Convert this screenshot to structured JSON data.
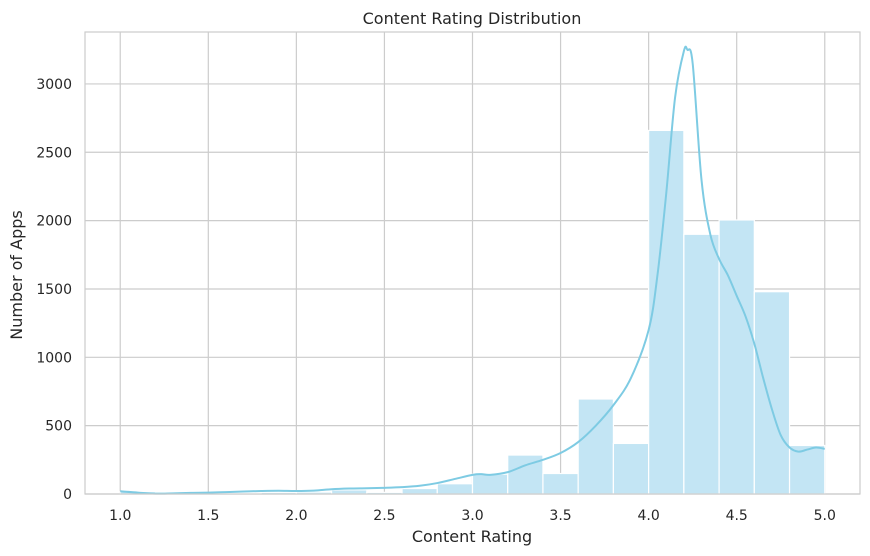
{
  "colors": {
    "bar_fill": "#c3e5f4",
    "bar_stroke": "#ffffff",
    "kde_line": "#7ecbe3",
    "grid": "#cccccc",
    "spine": "#cccccc",
    "text": "#262626",
    "background": "#ffffff"
  },
  "chart_data": {
    "type": "bar",
    "title": "Content Rating Distribution",
    "xlabel": "Content Rating",
    "ylabel": "Number of Apps",
    "xlim": [
      0.8,
      5.2
    ],
    "ylim": [
      0,
      3380
    ],
    "grid": true,
    "xticks": [
      1.0,
      1.5,
      2.0,
      2.5,
      3.0,
      3.5,
      4.0,
      4.5,
      5.0
    ],
    "xtick_labels": [
      "1.0",
      "1.5",
      "2.0",
      "2.5",
      "3.0",
      "3.5",
      "4.0",
      "4.5",
      "5.0"
    ],
    "yticks": [
      0,
      500,
      1000,
      1500,
      2000,
      2500,
      3000
    ],
    "ytick_labels": [
      "0",
      "500",
      "1000",
      "1500",
      "2000",
      "2500",
      "3000"
    ],
    "bins": [
      {
        "x0": 1.0,
        "x1": 1.2,
        "count": 17
      },
      {
        "x0": 1.2,
        "x1": 1.4,
        "count": 0
      },
      {
        "x0": 1.4,
        "x1": 1.6,
        "count": 3
      },
      {
        "x0": 1.6,
        "x1": 1.8,
        "count": 8
      },
      {
        "x0": 1.8,
        "x1": 2.0,
        "count": 12
      },
      {
        "x0": 2.0,
        "x1": 2.2,
        "count": 14
      },
      {
        "x0": 2.2,
        "x1": 2.4,
        "count": 30
      },
      {
        "x0": 2.4,
        "x1": 2.6,
        "count": 12
      },
      {
        "x0": 2.6,
        "x1": 2.8,
        "count": 40
      },
      {
        "x0": 2.8,
        "x1": 3.0,
        "count": 75
      },
      {
        "x0": 3.0,
        "x1": 3.2,
        "count": 145
      },
      {
        "x0": 3.2,
        "x1": 3.4,
        "count": 285
      },
      {
        "x0": 3.4,
        "x1": 3.6,
        "count": 150
      },
      {
        "x0": 3.6,
        "x1": 3.8,
        "count": 695
      },
      {
        "x0": 3.8,
        "x1": 4.0,
        "count": 370
      },
      {
        "x0": 4.0,
        "x1": 4.2,
        "count": 2660
      },
      {
        "x0": 4.2,
        "x1": 4.4,
        "count": 1900
      },
      {
        "x0": 4.4,
        "x1": 4.6,
        "count": 2005
      },
      {
        "x0": 4.6,
        "x1": 4.8,
        "count": 1480
      },
      {
        "x0": 4.8,
        "x1": 5.0,
        "count": 355
      }
    ],
    "kde": {
      "x": [
        1.0,
        1.1,
        1.2,
        1.3,
        1.4,
        1.5,
        1.6,
        1.7,
        1.8,
        1.9,
        2.0,
        2.1,
        2.2,
        2.3,
        2.4,
        2.5,
        2.6,
        2.7,
        2.8,
        2.9,
        3.0,
        3.05,
        3.1,
        3.2,
        3.3,
        3.4,
        3.5,
        3.6,
        3.7,
        3.8,
        3.9,
        4.0,
        4.05,
        4.1,
        4.15,
        4.2,
        4.22,
        4.25,
        4.3,
        4.35,
        4.4,
        4.45,
        4.5,
        4.55,
        4.6,
        4.65,
        4.7,
        4.75,
        4.8,
        4.85,
        4.9,
        4.95,
        5.0
      ],
      "y": [
        20,
        10,
        3,
        5,
        8,
        10,
        14,
        18,
        22,
        24,
        22,
        25,
        35,
        40,
        42,
        45,
        50,
        60,
        80,
        110,
        140,
        145,
        140,
        160,
        210,
        250,
        300,
        380,
        500,
        650,
        850,
        1200,
        1600,
        2200,
        2900,
        3240,
        3250,
        3150,
        2300,
        1900,
        1720,
        1600,
        1450,
        1300,
        1100,
        850,
        620,
        430,
        340,
        310,
        325,
        340,
        330
      ]
    }
  }
}
